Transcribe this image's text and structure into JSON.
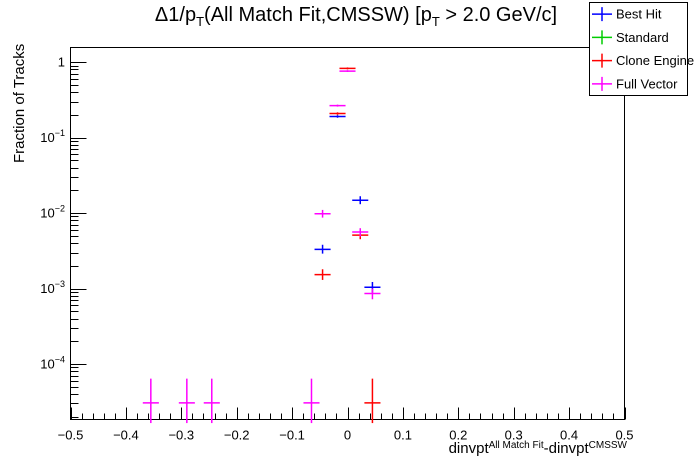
{
  "chart_data": {
    "type": "scatter",
    "title_plain": "Δ1/p_T(All Match Fit,CMSSW) [p_T > 2.0 GeV/c]",
    "title_parts": [
      {
        "t": "Δ1/p"
      },
      {
        "t": "T",
        "sub": true
      },
      {
        "t": "(All Match Fit,CMSSW) [p"
      },
      {
        "t": "T",
        "sub": true
      },
      {
        "t": " > 2.0 GeV/c]"
      }
    ],
    "x_axis": {
      "title_plain": "dinvpt^{All Match Fit}-dinvpt^{CMSSW}",
      "title_parts": [
        {
          "t": "dinvpt"
        },
        {
          "t": "All Match Fit",
          "sup": true
        },
        {
          "t": "-dinvpt"
        },
        {
          "t": "CMSSW",
          "sup": true
        }
      ],
      "scale": "linear",
      "range": [
        -0.5,
        0.5
      ],
      "major_ticks": [
        {
          "v": -0.5,
          "label": "−0.5"
        },
        {
          "v": -0.4,
          "label": "−0.4"
        },
        {
          "v": -0.3,
          "label": "−0.3"
        },
        {
          "v": -0.2,
          "label": "−0.2"
        },
        {
          "v": -0.1,
          "label": "−0.1"
        },
        {
          "v": 0.0,
          "label": "0"
        },
        {
          "v": 0.1,
          "label": "0.1"
        },
        {
          "v": 0.2,
          "label": "0.2"
        },
        {
          "v": 0.3,
          "label": "0.3"
        },
        {
          "v": 0.4,
          "label": "0.4"
        },
        {
          "v": 0.5,
          "label": "0.5"
        }
      ],
      "minor_step": 0.02
    },
    "y_axis": {
      "title": "Fraction of Tracks",
      "scale": "log",
      "range": [
        1.84e-05,
        1.56
      ],
      "major_ticks": [
        {
          "v": 1,
          "label": "1"
        },
        {
          "v": 0.1,
          "base": "10",
          "exp": "−1"
        },
        {
          "v": 0.01,
          "base": "10",
          "exp": "−2"
        },
        {
          "v": 0.001,
          "base": "10",
          "exp": "−3"
        },
        {
          "v": 0.0001,
          "base": "10",
          "exp": "−4"
        }
      ],
      "grid": false
    },
    "legend": {
      "position": "top-right",
      "entries": [
        {
          "label": "Best Hit",
          "color": "#0000ff"
        },
        {
          "label": "Standard",
          "color": "#00cc00"
        },
        {
          "label": "Clone Engine",
          "color": "#ff0000"
        },
        {
          "label": "Full Vector",
          "color": "#ff00ff"
        }
      ]
    },
    "series": [
      {
        "name": "Best Hit",
        "color": "#0000ff",
        "xerr": 0.0145,
        "points": [
          {
            "x": -0.045,
            "y": 0.0033,
            "ylo": 0.0029,
            "yhi": 0.0038
          },
          {
            "x": -0.018,
            "y": 0.19,
            "ylo": 0.183,
            "yhi": 0.198
          },
          {
            "x": 0.023,
            "y": 0.0148,
            "ylo": 0.0131,
            "yhi": 0.0167
          },
          {
            "x": 0.045,
            "y": 0.00104,
            "ylo": 0.00088,
            "yhi": 0.00122
          }
        ]
      },
      {
        "name": "Standard",
        "color": "#00cc00",
        "xerr": 0.0145,
        "points": []
      },
      {
        "name": "Clone Engine",
        "color": "#ff0000",
        "xerr": 0.0145,
        "points": [
          {
            "x": 0.0,
            "y": 0.825,
            "ylo": 0.8,
            "yhi": 0.85
          },
          {
            "x": -0.018,
            "y": 0.208,
            "ylo": 0.2,
            "yhi": 0.216
          },
          {
            "x": -0.045,
            "y": 0.00153,
            "ylo": 0.0013,
            "yhi": 0.0018
          },
          {
            "x": 0.023,
            "y": 0.0051,
            "ylo": 0.0045,
            "yhi": 0.0057
          },
          {
            "x": 0.045,
            "y": 3.05e-05,
            "ylo": 1.65e-05,
            "yhi": 6.4e-05
          }
        ]
      },
      {
        "name": "Full Vector",
        "color": "#ff00ff",
        "xerr": 0.0145,
        "points": [
          {
            "x": 0.0,
            "y": 0.76,
            "ylo": 0.74,
            "yhi": 0.78
          },
          {
            "x": -0.018,
            "y": 0.265,
            "ylo": 0.257,
            "yhi": 0.273
          },
          {
            "x": -0.045,
            "y": 0.0098,
            "ylo": 0.0087,
            "yhi": 0.011
          },
          {
            "x": 0.023,
            "y": 0.0056,
            "ylo": 0.0049,
            "yhi": 0.0063
          },
          {
            "x": 0.045,
            "y": 0.00086,
            "ylo": 0.00072,
            "yhi": 0.001
          },
          {
            "x": -0.355,
            "y": 3.05e-05,
            "ylo": 1.65e-05,
            "yhi": 6.4e-05
          },
          {
            "x": -0.29,
            "y": 3.05e-05,
            "ylo": 1.65e-05,
            "yhi": 6.4e-05
          },
          {
            "x": -0.245,
            "y": 3.05e-05,
            "ylo": 1.65e-05,
            "yhi": 6.4e-05
          },
          {
            "x": -0.065,
            "y": 3.05e-05,
            "ylo": 1.65e-05,
            "yhi": 6.4e-05
          }
        ]
      }
    ]
  }
}
